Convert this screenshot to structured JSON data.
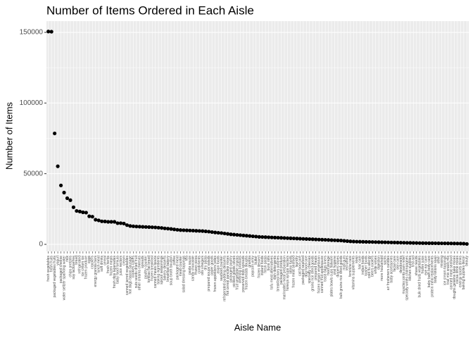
{
  "chart_data": {
    "type": "scatter",
    "title": "Number of Items Ordered in Each Aisle",
    "x_label": "Aisle Name",
    "y_label": "Number of Items",
    "color": "#000000",
    "grid": true,
    "ylim": [
      -4983,
      157950
    ],
    "yticks": [
      0,
      50000,
      100000,
      150000
    ],
    "categories": [
      "fresh vegetables",
      "fresh fruits",
      "packaged vegetables fruits",
      "yogurt",
      "packaged cheese",
      "water seltzer sparkling water",
      "milk",
      "chips pretzels",
      "soy lactosefree",
      "bread",
      "refrigerated",
      "ice cream ice",
      "frozen produce",
      "eggs",
      "crackers",
      "energy granola bars",
      "lunch meat",
      "soft drinks",
      "cereal",
      "fresh herbs",
      "frozen meals",
      "fresh dips tapenades",
      "baby food formula",
      "juice nectars",
      "cream",
      "canned jarred vegetables",
      "hot dogs bacon sausage",
      "cookies cakes",
      "nuts seeds dried fruit",
      "other creams cheeses",
      "spreads",
      "poultry counter",
      "tortillas flat bread",
      "frozen breakfast",
      "canned meals beans",
      "baking ingredients",
      "spices seasonings",
      "bakery desserts",
      "breakfast bakery",
      "soup broth bouillon",
      "coffee",
      "packaged meat",
      "meat counter",
      "salad dressing toppings",
      "tea",
      "pasta sauce",
      "candy chocolate",
      "frozen pizza",
      "condiments",
      "oils vinegars",
      "dry pasta",
      "prepared soups salads",
      "paper goods",
      "frozen appetizers sides",
      "asian foods",
      "seafood counter",
      "refrigerated pudding desserts",
      "hot cereal pancake mixes",
      "packaged poultry",
      "pickled goods olives",
      "fruit vegetable snacks",
      "cleaning products",
      "preserved dips spreads",
      "frozen breads doughs",
      "granola",
      "popcorn jerky",
      "butter",
      "frozen dessert",
      "instant foods",
      "fresh pasta",
      "buns rolls",
      "tofu meat alternatives",
      "dish detergents",
      "breakfast bars pastries",
      "packaged produce",
      "marinades meat preparation",
      "honeys syrups nectars",
      "latino foods",
      "frozen meat seafood",
      "laundry",
      "cat food care",
      "packaged seafood",
      "dog food care",
      "specialty cheeses",
      "grains rice dried goods",
      "prepared meals",
      "frozen vegan vegetarian",
      "canned fruit applesauce",
      "trash bags liners",
      "food storage",
      "plates bowls cups flatware",
      "oral hygiene",
      "diapers wipes",
      "bulk grains rice dried goods",
      "mint gum",
      "red wines",
      "feminine care",
      "vitamins supplements",
      "soap",
      "hair care",
      "indian foods",
      "kosher foods",
      "cold flu allergy",
      "beers coolers",
      "white wines",
      "digestion",
      "more household",
      "spirits",
      "air fresheners candles",
      "baby accessories",
      "facial care",
      "skin care",
      "deodorants",
      "muscles joints pain relief",
      "specialty wines champagnes",
      "kitchen supplies",
      "first aid",
      "shave needs",
      "bulk dried fruits vegetables",
      "frozen juice",
      "eye ear care",
      "baby bath body care",
      "protein meal replacements",
      "body lotions soap",
      "other",
      "missing",
      "ice cream toppings",
      "trail mix snack mix",
      "canned meat seafood",
      "doughs gelatins bake mixes",
      "cocoa drink mixes",
      "energy sports drinks",
      "baking supplies decor",
      "beauty"
    ],
    "values": [
      150609,
      150473,
      78493,
      55240,
      41699,
      36617,
      32644,
      31269,
      26240,
      23635,
      23228,
      22676,
      22453,
      19875,
      19592,
      17449,
      16957,
      16279,
      16201,
      15951,
      15950,
      15935,
      14982,
      14975,
      14716,
      13600,
      13000,
      12800,
      12600,
      12500,
      12400,
      12300,
      12200,
      12100,
      12000,
      11800,
      11600,
      11300,
      11100,
      10900,
      10600,
      10300,
      10100,
      10000,
      9900,
      9800,
      9700,
      9600,
      9500,
      9400,
      9200,
      9000,
      8700,
      8400,
      8200,
      8000,
      7700,
      7400,
      7100,
      6900,
      6700,
      6500,
      6300,
      6100,
      5900,
      5700,
      5500,
      5300,
      5200,
      5100,
      5000,
      4900,
      4800,
      4700,
      4600,
      4500,
      4400,
      4300,
      4200,
      4100,
      4000,
      3900,
      3800,
      3700,
      3600,
      3500,
      3400,
      3300,
      3200,
      3100,
      3000,
      2900,
      2800,
      2700,
      2500,
      2300,
      2100,
      2000,
      1900,
      1850,
      1800,
      1750,
      1700,
      1650,
      1600,
      1550,
      1500,
      1450,
      1400,
      1350,
      1300,
      1250,
      1200,
      1150,
      1100,
      1050,
      1000,
      950,
      900,
      880,
      850,
      820,
      800,
      780,
      750,
      720,
      700,
      680,
      650,
      620,
      600,
      560,
      500,
      287
    ]
  }
}
